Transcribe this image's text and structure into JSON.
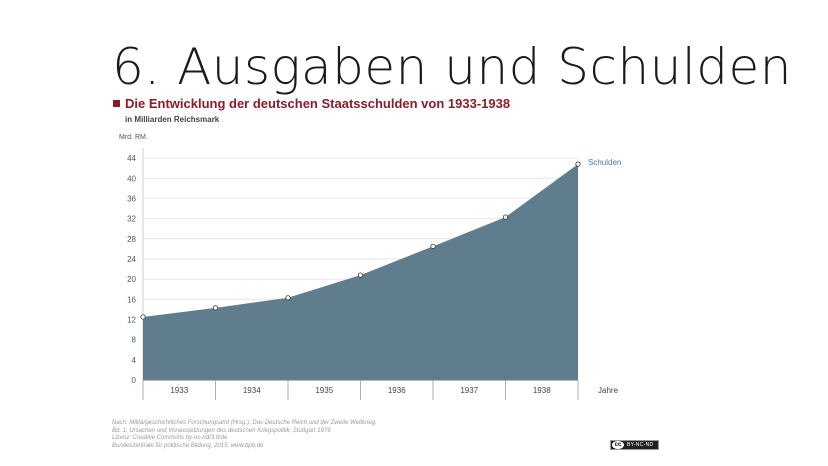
{
  "slide": {
    "title": "6. Ausgaben und Schulden"
  },
  "chart_data": {
    "type": "area",
    "title": "Die Entwicklung der deutschen Staatsschulden von 1933-1938",
    "subtitle": "in Milliarden Reichsmark",
    "ylabel": "Mrd. RM.",
    "xlabel": "Jahre",
    "categories": [
      "1933",
      "1934",
      "1935",
      "1936",
      "1937",
      "1938"
    ],
    "x": [
      1932.5,
      1933.5,
      1934.5,
      1935.5,
      1936.5,
      1937.5,
      1938.5
    ],
    "series": [
      {
        "name": "Schulden",
        "values": [
          12.5,
          14.3,
          16.3,
          20.8,
          26.5,
          32.3,
          42.8
        ],
        "color": "#5f7d8c"
      }
    ],
    "ylim": [
      0,
      46
    ],
    "yticks": [
      0,
      4,
      8,
      12,
      16,
      20,
      24,
      28,
      32,
      36,
      40,
      44
    ],
    "grid": true
  },
  "source": {
    "lines": [
      "Nach: Militärgeschichtliches Forschungsamt (Hrsg.), Das Deutsche Reich und der Zweite Weltkrieg,",
      "Bd. 1. Ursachen und Voraussetzungen des deutschen Kriegspolitik, Stuttgart 1979",
      "Lizenz: Creative Commons by-nc-nd/3.0/de",
      "Bundeszentrale für politische Bildung, 2015, www.bpb.de"
    ]
  },
  "license_badge": {
    "mark": "cc",
    "text": "BY-NC-ND"
  }
}
